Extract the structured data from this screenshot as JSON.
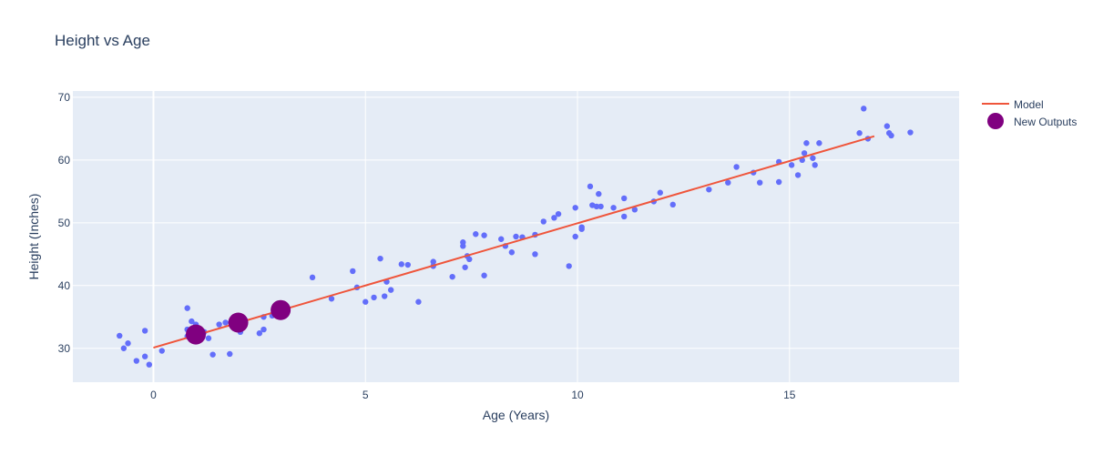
{
  "chart_data": {
    "type": "scatter",
    "title": "Height vs Age",
    "xlabel": "Age (Years)",
    "ylabel": "Height (Inches)",
    "xlim": [
      -1.9,
      19.0
    ],
    "ylim": [
      24.6,
      71.0
    ],
    "x_ticks": [
      0,
      5,
      10,
      15
    ],
    "y_ticks": [
      30,
      40,
      50,
      60,
      70
    ],
    "grid": true,
    "legend_position": "top-right",
    "colors": {
      "plot_bg": "#E5ECF6",
      "grid": "#ffffff",
      "scatter": "#636EFA",
      "model": "#EF553B",
      "new_outputs": "#800080"
    },
    "series": [
      {
        "kind": "scatter",
        "points": [
          [
            -0.8,
            32.0
          ],
          [
            -0.7,
            30.0
          ],
          [
            -0.6,
            30.8
          ],
          [
            -0.4,
            28.0
          ],
          [
            -0.2,
            32.8
          ],
          [
            -0.2,
            28.7
          ],
          [
            -0.1,
            27.4
          ],
          [
            0.2,
            29.6
          ],
          [
            0.8,
            36.4
          ],
          [
            0.8,
            33.0
          ],
          [
            0.8,
            31.9
          ],
          [
            0.9,
            34.3
          ],
          [
            1.0,
            33.8
          ],
          [
            1.2,
            32.6
          ],
          [
            1.3,
            31.6
          ],
          [
            1.4,
            29.0
          ],
          [
            1.55,
            33.8
          ],
          [
            1.7,
            34.1
          ],
          [
            1.8,
            29.1
          ],
          [
            1.9,
            34.3
          ],
          [
            2.05,
            32.6
          ],
          [
            2.5,
            32.4
          ],
          [
            2.6,
            33.0
          ],
          [
            2.6,
            35.0
          ],
          [
            2.8,
            35.2
          ],
          [
            3.75,
            41.3
          ],
          [
            4.2,
            37.9
          ],
          [
            4.7,
            42.3
          ],
          [
            4.8,
            39.7
          ],
          [
            5.0,
            37.4
          ],
          [
            5.2,
            38.1
          ],
          [
            5.35,
            44.3
          ],
          [
            5.45,
            38.3
          ],
          [
            5.5,
            40.6
          ],
          [
            5.6,
            39.3
          ],
          [
            5.85,
            43.4
          ],
          [
            6.0,
            43.3
          ],
          [
            6.25,
            37.4
          ],
          [
            6.6,
            43.8
          ],
          [
            6.6,
            43.1
          ],
          [
            7.05,
            41.4
          ],
          [
            7.3,
            46.9
          ],
          [
            7.3,
            46.3
          ],
          [
            7.35,
            42.9
          ],
          [
            7.4,
            44.7
          ],
          [
            7.45,
            44.2
          ],
          [
            7.6,
            48.2
          ],
          [
            7.8,
            48.0
          ],
          [
            7.8,
            41.6
          ],
          [
            8.2,
            47.4
          ],
          [
            8.3,
            46.3
          ],
          [
            8.45,
            45.3
          ],
          [
            8.55,
            47.8
          ],
          [
            8.7,
            47.7
          ],
          [
            9.0,
            48.1
          ],
          [
            9.0,
            45.0
          ],
          [
            9.2,
            50.2
          ],
          [
            9.45,
            50.8
          ],
          [
            9.55,
            51.4
          ],
          [
            9.8,
            43.1
          ],
          [
            9.95,
            47.8
          ],
          [
            9.95,
            52.4
          ],
          [
            10.1,
            49.3
          ],
          [
            10.1,
            49.0
          ],
          [
            10.3,
            55.8
          ],
          [
            10.35,
            52.8
          ],
          [
            10.45,
            52.6
          ],
          [
            10.5,
            54.6
          ],
          [
            10.55,
            52.6
          ],
          [
            10.85,
            52.4
          ],
          [
            11.1,
            53.9
          ],
          [
            11.1,
            51.0
          ],
          [
            11.35,
            52.1
          ],
          [
            11.8,
            53.4
          ],
          [
            11.95,
            54.8
          ],
          [
            12.25,
            52.9
          ],
          [
            13.1,
            55.3
          ],
          [
            13.55,
            56.4
          ],
          [
            13.75,
            58.9
          ],
          [
            14.15,
            58.0
          ],
          [
            14.3,
            56.4
          ],
          [
            14.75,
            59.7
          ],
          [
            14.75,
            56.5
          ],
          [
            15.05,
            59.2
          ],
          [
            15.2,
            57.6
          ],
          [
            15.3,
            60.0
          ],
          [
            15.35,
            61.1
          ],
          [
            15.4,
            62.7
          ],
          [
            15.55,
            60.3
          ],
          [
            15.6,
            59.2
          ],
          [
            15.7,
            62.7
          ],
          [
            16.65,
            64.3
          ],
          [
            16.75,
            68.2
          ],
          [
            16.85,
            63.4
          ],
          [
            17.3,
            65.4
          ],
          [
            17.35,
            64.3
          ],
          [
            17.4,
            63.9
          ],
          [
            17.85,
            64.4
          ]
        ]
      },
      {
        "kind": "line",
        "name": "Model",
        "x": [
          0,
          17
        ],
        "y": [
          30.1,
          63.8
        ]
      },
      {
        "kind": "marker",
        "name": "New Outputs",
        "x": [
          1,
          2,
          3
        ],
        "y": [
          32.2,
          34.1,
          36.1
        ]
      }
    ]
  }
}
